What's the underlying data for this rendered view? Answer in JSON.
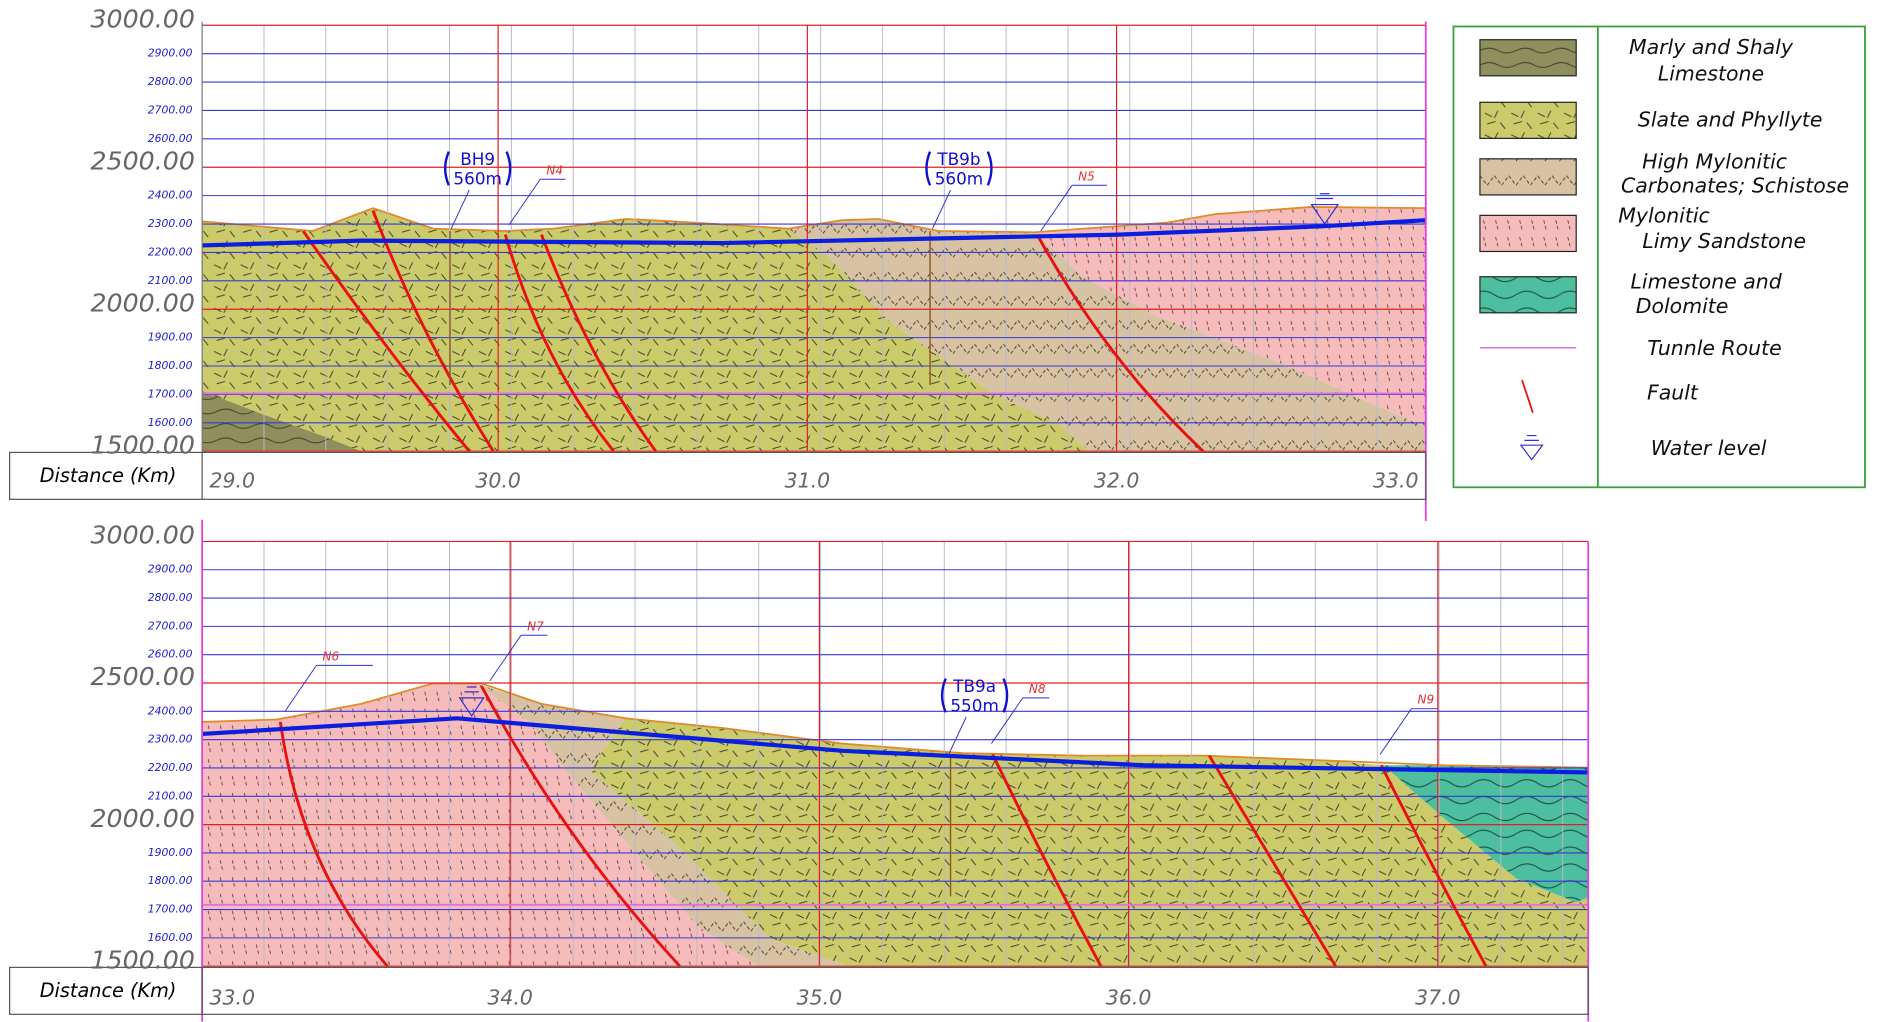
{
  "panels": [
    {
      "yticks": [
        {
          "value": 3000,
          "label": "3000.00"
        },
        {
          "value": 2900,
          "label": "2900.00"
        },
        {
          "value": 2800,
          "label": "2800.00"
        },
        {
          "value": 2700,
          "label": "2700.00"
        },
        {
          "value": 2600,
          "label": "2600.00"
        },
        {
          "value": 2500,
          "label": "2500.00"
        },
        {
          "value": 2400,
          "label": "2400.00"
        },
        {
          "value": 2300,
          "label": "2300.00"
        },
        {
          "value": 2200,
          "label": "2200.00"
        },
        {
          "value": 2100,
          "label": "2100.00"
        },
        {
          "value": 2000,
          "label": "2000.00"
        },
        {
          "value": 1900,
          "label": "1900.00"
        },
        {
          "value": 1800,
          "label": "1800.00"
        },
        {
          "value": 1700,
          "label": "1700.00"
        },
        {
          "value": 1600,
          "label": "1600.00"
        },
        {
          "value": 1500,
          "label": "1500.00"
        }
      ],
      "xticks": [
        {
          "value": 29,
          "label": "29.0"
        },
        {
          "value": 30,
          "label": "30.0"
        },
        {
          "value": 31,
          "label": "31.0"
        },
        {
          "value": 32,
          "label": "32.0"
        },
        {
          "value": 33,
          "label": "33.0"
        }
      ],
      "axis_label": "Distance (Km)",
      "boreholes": [
        {
          "name": "BH9",
          "depth": "560m"
        },
        {
          "name": "TB9b",
          "depth": "560m"
        }
      ],
      "faults": [
        "N4",
        "N5"
      ]
    },
    {
      "yticks": [
        {
          "value": 3000,
          "label": "3000.00"
        },
        {
          "value": 2900,
          "label": "2900.00"
        },
        {
          "value": 2800,
          "label": "2800.00"
        },
        {
          "value": 2700,
          "label": "2700.00"
        },
        {
          "value": 2600,
          "label": "2600.00"
        },
        {
          "value": 2500,
          "label": "2500.00"
        },
        {
          "value": 2400,
          "label": "2400.00"
        },
        {
          "value": 2300,
          "label": "2300.00"
        },
        {
          "value": 2200,
          "label": "2200.00"
        },
        {
          "value": 2100,
          "label": "2100.00"
        },
        {
          "value": 2000,
          "label": "2000.00"
        },
        {
          "value": 1900,
          "label": "1900.00"
        },
        {
          "value": 1800,
          "label": "1800.00"
        },
        {
          "value": 1700,
          "label": "1700.00"
        },
        {
          "value": 1600,
          "label": "1600.00"
        },
        {
          "value": 1500,
          "label": "1500.00"
        }
      ],
      "xticks": [
        {
          "value": 33,
          "label": "33.0"
        },
        {
          "value": 34,
          "label": "34.0"
        },
        {
          "value": 35,
          "label": "35.0"
        },
        {
          "value": 36,
          "label": "36.0"
        },
        {
          "value": 37,
          "label": "37.0"
        }
      ],
      "axis_label": "Distance (Km)",
      "boreholes": [
        {
          "name": "TB9a",
          "depth": "550m"
        }
      ],
      "faults": [
        "N6",
        "N7",
        "N8",
        "N9"
      ]
    }
  ],
  "legend": [
    {
      "lines": [
        "Marly and Shaly",
        "Limestone"
      ]
    },
    {
      "lines": [
        "Slate and Phyllyte"
      ]
    },
    {
      "lines": [
        "High Mylonitic",
        "Carbonates; Schistose"
      ]
    },
    {
      "lines": [
        "Mylonitic",
        "Limy Sandstone"
      ]
    },
    {
      "lines": [
        "Limestone and",
        "Dolomite"
      ]
    },
    {
      "lines": [
        "Tunnle Route"
      ]
    },
    {
      "lines": [
        "Fault"
      ]
    },
    {
      "lines": [
        "Water level"
      ]
    }
  ]
}
